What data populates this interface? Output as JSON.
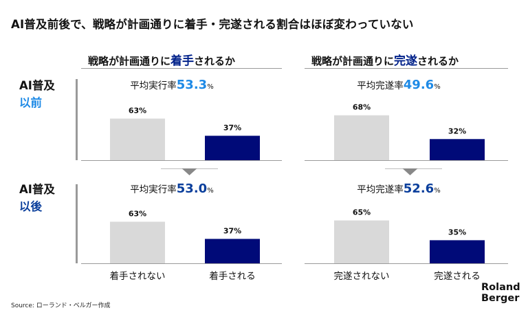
{
  "title": "AI普及前後で、戦略が計画通りに着手・完遂される割合はほぼ変わっていない",
  "columns": [
    {
      "heading_pre": "戦略が計画通りに",
      "heading_hl": "着手",
      "heading_post": "されるか",
      "categories": [
        "着手されない",
        "着手される"
      ]
    },
    {
      "heading_pre": "戦略が計画通りに",
      "heading_hl": "完遂",
      "heading_post": "されるか",
      "categories": [
        "完遂されない",
        "完遂される"
      ]
    }
  ],
  "rows": [
    {
      "label_pre": "AI普及",
      "label_hl": "以前"
    },
    {
      "label_pre": "AI普及",
      "label_hl": "以後"
    }
  ],
  "colors": {
    "gray": "#d9d9d9",
    "navy": "#000a78",
    "light_blue": "#1e8ae6",
    "dark_blue": "#0b3f9c",
    "divider": "#9a9a9a",
    "arrow": "#888888"
  },
  "chart_data": [
    {
      "type": "bar",
      "row": "AI普及以前",
      "avg_label": "平均実行率",
      "avg_value": "53.3",
      "avg_unit": "%",
      "categories": [
        "着手されない",
        "着手される"
      ],
      "values": [
        63,
        37
      ],
      "value_labels": [
        "63%",
        "37%"
      ],
      "ylim": [
        0,
        100
      ]
    },
    {
      "type": "bar",
      "row": "AI普及以前",
      "avg_label": "平均完遂率",
      "avg_value": "49.6",
      "avg_unit": "%",
      "categories": [
        "完遂されない",
        "完遂される"
      ],
      "values": [
        68,
        32
      ],
      "value_labels": [
        "68%",
        "32%"
      ],
      "ylim": [
        0,
        100
      ]
    },
    {
      "type": "bar",
      "row": "AI普及以後",
      "avg_label": "平均実行率",
      "avg_value": "53.0",
      "avg_unit": "%",
      "categories": [
        "着手されない",
        "着手される"
      ],
      "values": [
        63,
        37
      ],
      "value_labels": [
        "63%",
        "37%"
      ],
      "ylim": [
        0,
        100
      ]
    },
    {
      "type": "bar",
      "row": "AI普及以後",
      "avg_label": "平均完遂率",
      "avg_value": "52.6",
      "avg_unit": "%",
      "categories": [
        "完遂されない",
        "完遂される"
      ],
      "values": [
        65,
        35
      ],
      "value_labels": [
        "65%",
        "35%"
      ],
      "ylim": [
        0,
        100
      ]
    }
  ],
  "source": "Source: ローランド・ベルガー作成",
  "logo": {
    "line1": "Roland",
    "line2": "Berger"
  }
}
